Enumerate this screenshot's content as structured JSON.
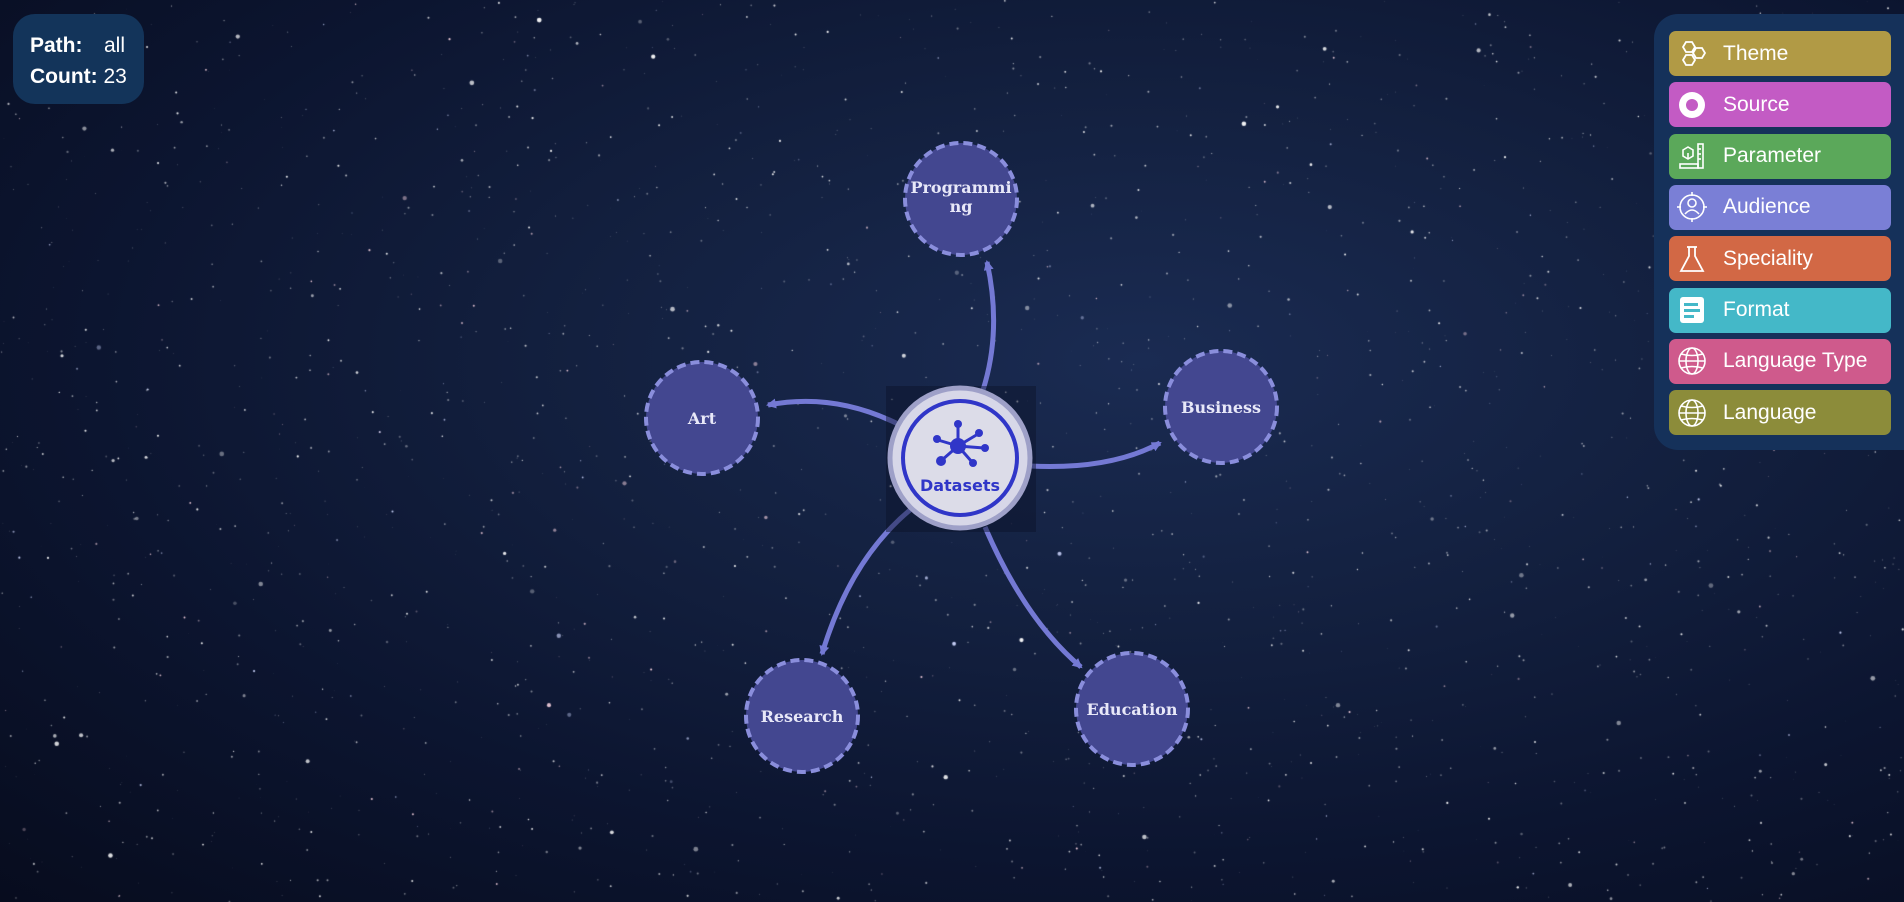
{
  "info": {
    "path_label": "Path:",
    "path_value": "all",
    "count_label": "Count:",
    "count_value": "23"
  },
  "legend": [
    {
      "label": "Theme",
      "color": "#b19a45",
      "icon": "hexagons-icon"
    },
    {
      "label": "Source",
      "color": "#c35bc4",
      "icon": "source-ring-icon"
    },
    {
      "label": "Parameter",
      "color": "#5ba85a",
      "icon": "ruler-cube-icon"
    },
    {
      "label": "Audience",
      "color": "#7a7fd6",
      "icon": "person-target-icon"
    },
    {
      "label": "Speciality",
      "color": "#d26845",
      "icon": "flask-icon"
    },
    {
      "label": "Format",
      "color": "#44b8c8",
      "icon": "document-icon"
    },
    {
      "label": "Language Type",
      "color": "#cf5a8c",
      "icon": "globe-icon"
    },
    {
      "label": "Language",
      "color": "#8c8c3a",
      "icon": "globe-icon"
    }
  ],
  "graph": {
    "center": {
      "label": "Datasets",
      "icon": "network-hub-icon"
    },
    "nodes": [
      {
        "label": "Programming"
      },
      {
        "label": "Art"
      },
      {
        "label": "Business"
      },
      {
        "label": "Research"
      },
      {
        "label": "Education"
      }
    ],
    "colors": {
      "node_fill": "#434790",
      "node_border": "#8a8edc",
      "edge": "#7479d4",
      "center_ring": "#3036c8"
    }
  }
}
